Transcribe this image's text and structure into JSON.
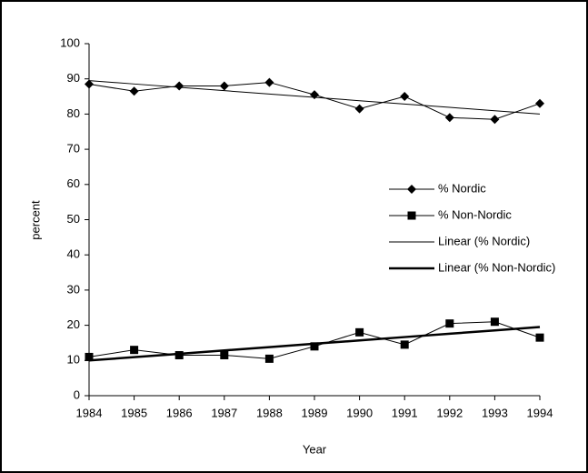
{
  "chart_data": {
    "type": "line",
    "xlabel": "Year",
    "ylabel": "percent",
    "categories": [
      "1984",
      "1985",
      "1986",
      "1987",
      "1988",
      "1989",
      "1990",
      "1991",
      "1992",
      "1993",
      "1994"
    ],
    "ylim": [
      0,
      100
    ],
    "yticks": [
      0,
      10,
      20,
      30,
      40,
      50,
      60,
      70,
      80,
      90,
      100
    ],
    "series": [
      {
        "name": "% Nordic",
        "color": "#000000",
        "marker": "diamond",
        "width": 1,
        "values": [
          88.5,
          86.5,
          88,
          88,
          89,
          85.5,
          81.5,
          85,
          79,
          78.5,
          83
        ]
      },
      {
        "name": "% Non-Nordic",
        "color": "#000000",
        "marker": "square",
        "width": 1,
        "values": [
          11,
          13,
          11.5,
          11.5,
          10.5,
          14,
          18,
          14.5,
          20.5,
          21,
          16.5
        ]
      },
      {
        "name": "Linear (% Nordic)",
        "color": "#000000",
        "marker": "none",
        "width": 1,
        "values": [
          89.5,
          88.55,
          87.6,
          86.65,
          85.7,
          84.75,
          83.8,
          82.85,
          81.9,
          80.95,
          80
        ]
      },
      {
        "name": "Linear (% Non-Nordic)",
        "color": "#000000",
        "marker": "none",
        "width": 2.5,
        "values": [
          10,
          10.95,
          11.9,
          12.85,
          13.8,
          14.75,
          15.7,
          16.65,
          17.6,
          18.55,
          19.5
        ]
      }
    ],
    "legend": "right"
  }
}
